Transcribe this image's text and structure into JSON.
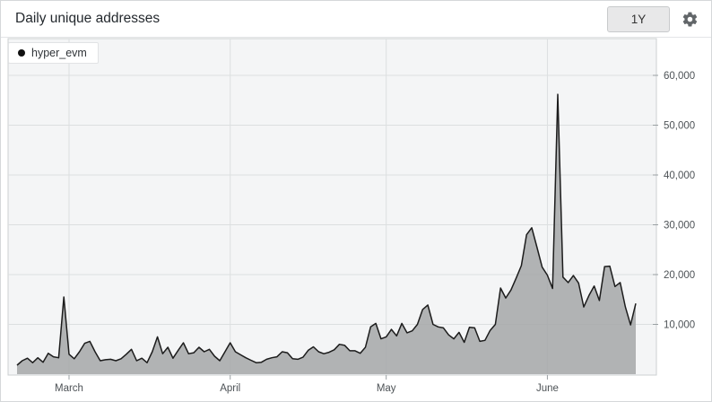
{
  "header": {
    "title": "Daily unique addresses",
    "range_button_label": "1Y"
  },
  "legend": {
    "series_label": "hyper_evm",
    "marker_color": "#111111"
  },
  "colors": {
    "plot_background": "#f4f5f6",
    "grid_line": "#dcdfe0",
    "plot_border": "#ccd0d2",
    "area_fill": "rgba(165,167,168,0.85)",
    "line_stroke": "#1c1c1c",
    "axis_text": "#4d5256",
    "tick_mark": "#9aa0a3"
  },
  "chart_data": {
    "type": "area",
    "title": "Daily unique addresses",
    "legend_position": "top-left",
    "grid": true,
    "ylim": [
      0,
      67000
    ],
    "y_ticks": [
      {
        "v": 10000,
        "label": "10,000"
      },
      {
        "v": 20000,
        "label": "20,000"
      },
      {
        "v": 30000,
        "label": "30,000"
      },
      {
        "v": 40000,
        "label": "40,000"
      },
      {
        "v": 50000,
        "label": "50,000"
      },
      {
        "v": 60000,
        "label": "60,000"
      }
    ],
    "x_ticks": [
      {
        "label": "March",
        "i": 10
      },
      {
        "label": "April",
        "i": 41
      },
      {
        "label": "May",
        "i": 71
      },
      {
        "label": "June",
        "i": 102
      }
    ],
    "point_format": [
      "date",
      "value"
    ],
    "series": [
      {
        "name": "hyper_evm",
        "points": [
          [
            "Feb 19",
            1800
          ],
          [
            "Feb 20",
            2700
          ],
          [
            "Feb 21",
            3200
          ],
          [
            "Feb 22",
            2300
          ],
          [
            "Feb 23",
            3300
          ],
          [
            "Feb 24",
            2400
          ],
          [
            "Feb 25",
            4200
          ],
          [
            "Feb 26",
            3500
          ],
          [
            "Feb 27",
            3300
          ],
          [
            "Feb 28",
            15500
          ],
          [
            "Mar 1",
            4000
          ],
          [
            "Mar 2",
            3100
          ],
          [
            "Mar 3",
            4500
          ],
          [
            "Mar 4",
            6200
          ],
          [
            "Mar 5",
            6600
          ],
          [
            "Mar 6",
            4500
          ],
          [
            "Mar 7",
            2700
          ],
          [
            "Mar 8",
            2900
          ],
          [
            "Mar 9",
            3000
          ],
          [
            "Mar 10",
            2700
          ],
          [
            "Mar 11",
            3100
          ],
          [
            "Mar 12",
            4000
          ],
          [
            "Mar 13",
            5000
          ],
          [
            "Mar 14",
            2700
          ],
          [
            "Mar 15",
            3200
          ],
          [
            "Mar 16",
            2300
          ],
          [
            "Mar 17",
            4500
          ],
          [
            "Mar 18",
            7500
          ],
          [
            "Mar 19",
            4100
          ],
          [
            "Mar 20",
            5400
          ],
          [
            "Mar 21",
            3200
          ],
          [
            "Mar 22",
            4800
          ],
          [
            "Mar 23",
            6300
          ],
          [
            "Mar 24",
            4100
          ],
          [
            "Mar 25",
            4300
          ],
          [
            "Mar 26",
            5400
          ],
          [
            "Mar 27",
            4500
          ],
          [
            "Mar 28",
            5000
          ],
          [
            "Mar 29",
            3600
          ],
          [
            "Mar 30",
            2700
          ],
          [
            "Mar 31",
            4500
          ],
          [
            "Apr 1",
            6300
          ],
          [
            "Apr 2",
            4500
          ],
          [
            "Apr 3",
            3900
          ],
          [
            "Apr 4",
            3300
          ],
          [
            "Apr 5",
            2800
          ],
          [
            "Apr 6",
            2300
          ],
          [
            "Apr 7",
            2400
          ],
          [
            "Apr 8",
            3000
          ],
          [
            "Apr 9",
            3300
          ],
          [
            "Apr 10",
            3500
          ],
          [
            "Apr 11",
            4500
          ],
          [
            "Apr 12",
            4300
          ],
          [
            "Apr 13",
            3100
          ],
          [
            "Apr 14",
            3000
          ],
          [
            "Apr 15",
            3400
          ],
          [
            "Apr 16",
            4800
          ],
          [
            "Apr 17",
            5500
          ],
          [
            "Apr 18",
            4500
          ],
          [
            "Apr 19",
            4100
          ],
          [
            "Apr 20",
            4400
          ],
          [
            "Apr 21",
            4900
          ],
          [
            "Apr 22",
            6000
          ],
          [
            "Apr 23",
            5800
          ],
          [
            "Apr 24",
            4700
          ],
          [
            "Apr 25",
            4700
          ],
          [
            "Apr 26",
            4200
          ],
          [
            "Apr 27",
            5400
          ],
          [
            "Apr 28",
            9500
          ],
          [
            "Apr 29",
            10200
          ],
          [
            "Apr 30",
            7100
          ],
          [
            "May 1",
            7500
          ],
          [
            "May 2",
            9000
          ],
          [
            "May 3",
            7700
          ],
          [
            "May 4",
            10200
          ],
          [
            "May 5",
            8300
          ],
          [
            "May 6",
            8700
          ],
          [
            "May 7",
            10000
          ],
          [
            "May 8",
            13000
          ],
          [
            "May 9",
            13900
          ],
          [
            "May 10",
            10000
          ],
          [
            "May 11",
            9500
          ],
          [
            "May 12",
            9300
          ],
          [
            "May 13",
            7900
          ],
          [
            "May 14",
            7100
          ],
          [
            "May 15",
            8400
          ],
          [
            "May 16",
            6400
          ],
          [
            "May 17",
            9400
          ],
          [
            "May 18",
            9300
          ],
          [
            "May 19",
            6600
          ],
          [
            "May 20",
            6800
          ],
          [
            "May 21",
            8800
          ],
          [
            "May 22",
            10000
          ],
          [
            "May 23",
            17300
          ],
          [
            "May 24",
            15300
          ],
          [
            "May 25",
            16900
          ],
          [
            "May 26",
            19300
          ],
          [
            "May 27",
            21800
          ],
          [
            "May 28",
            28000
          ],
          [
            "May 29",
            29400
          ],
          [
            "May 30",
            25500
          ],
          [
            "May 31",
            21500
          ],
          [
            "Jun 1",
            19900
          ],
          [
            "Jun 2",
            17200
          ],
          [
            "Jun 3",
            56200
          ],
          [
            "Jun 4",
            19500
          ],
          [
            "Jun 5",
            18400
          ],
          [
            "Jun 6",
            19800
          ],
          [
            "Jun 7",
            18300
          ],
          [
            "Jun 8",
            13500
          ],
          [
            "Jun 9",
            15800
          ],
          [
            "Jun 10",
            17700
          ],
          [
            "Jun 11",
            14800
          ],
          [
            "Jun 12",
            21600
          ],
          [
            "Jun 13",
            21700
          ],
          [
            "Jun 14",
            17600
          ],
          [
            "Jun 15",
            18400
          ],
          [
            "Jun 16",
            13500
          ],
          [
            "Jun 17",
            9900
          ],
          [
            "Jun 18",
            14200
          ]
        ]
      }
    ]
  }
}
